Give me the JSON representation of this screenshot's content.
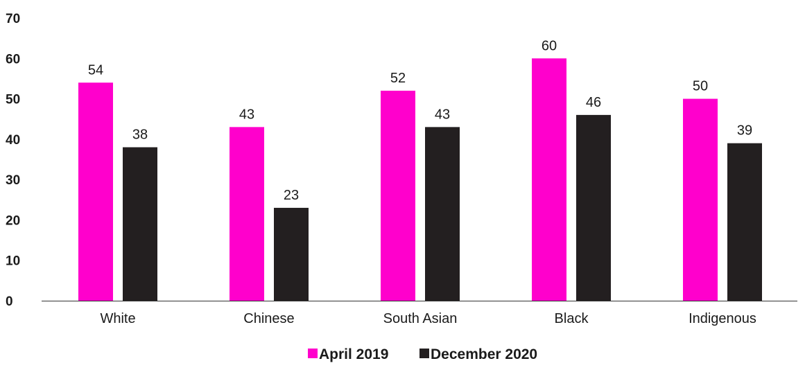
{
  "chart_data": {
    "type": "bar",
    "categories": [
      "White",
      "Chinese",
      "South Asian",
      "Black",
      "Indigenous"
    ],
    "series": [
      {
        "name": "April 2019",
        "values": [
          54,
          43,
          52,
          60,
          50
        ],
        "color": "#ff00cc"
      },
      {
        "name": "December 2020",
        "values": [
          38,
          23,
          43,
          46,
          39
        ],
        "color": "#231f20"
      }
    ],
    "ylim": [
      0,
      70
    ],
    "yticks": [
      0,
      10,
      20,
      30,
      40,
      50,
      60,
      70
    ],
    "grid": false,
    "legend_position": "bottom-center",
    "data_labels": true
  }
}
